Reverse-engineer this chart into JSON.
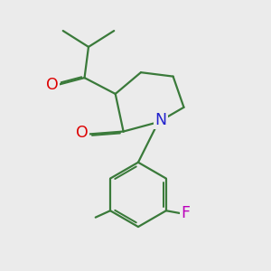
{
  "background_color": "#ebebeb",
  "bond_color": "#3a7a3a",
  "atom_colors": {
    "O": "#dd0000",
    "N": "#2222cc",
    "F": "#bb00bb"
  },
  "bond_width": 1.6,
  "font_size": 11.5
}
